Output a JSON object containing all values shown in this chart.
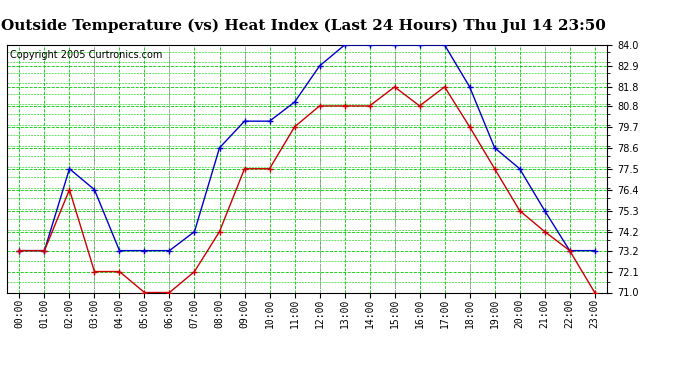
{
  "title": "Outside Temperature (vs) Heat Index (Last 24 Hours) Thu Jul 14 23:50",
  "copyright": "Copyright 2005 Curtronics.com",
  "x_labels": [
    "00:00",
    "01:00",
    "02:00",
    "03:00",
    "04:00",
    "05:00",
    "06:00",
    "07:00",
    "08:00",
    "09:00",
    "10:00",
    "11:00",
    "12:00",
    "13:00",
    "14:00",
    "15:00",
    "16:00",
    "17:00",
    "18:00",
    "19:00",
    "20:00",
    "21:00",
    "22:00",
    "23:00"
  ],
  "blue_data": [
    73.2,
    73.2,
    77.5,
    76.4,
    73.2,
    73.2,
    73.2,
    74.2,
    78.6,
    80.0,
    80.0,
    81.0,
    82.9,
    84.0,
    84.0,
    84.0,
    84.0,
    84.0,
    81.8,
    78.6,
    77.5,
    75.3,
    73.2,
    73.2
  ],
  "red_data": [
    73.2,
    73.2,
    76.4,
    72.1,
    72.1,
    71.0,
    71.0,
    72.1,
    74.2,
    77.5,
    77.5,
    79.7,
    80.8,
    80.8,
    80.8,
    81.8,
    80.8,
    81.8,
    79.7,
    77.5,
    75.3,
    74.2,
    73.2,
    71.0
  ],
  "blue_color": "#0000cc",
  "red_color": "#cc0000",
  "bg_color": "#ffffff",
  "plot_bg_color": "#ffffff",
  "grid_major_color": "#00cc00",
  "grid_minor_color": "#00cc00",
  "ymin": 71.0,
  "ymax": 84.0,
  "yticks": [
    71.0,
    72.1,
    73.2,
    74.2,
    75.3,
    76.4,
    77.5,
    78.6,
    79.7,
    80.8,
    81.8,
    82.9,
    84.0
  ],
  "title_fontsize": 11,
  "copyright_fontsize": 7,
  "tick_fontsize": 7,
  "vline_color": "#aaaaaa",
  "vline_hours": [
    3,
    6,
    9,
    12,
    15,
    18,
    21
  ]
}
